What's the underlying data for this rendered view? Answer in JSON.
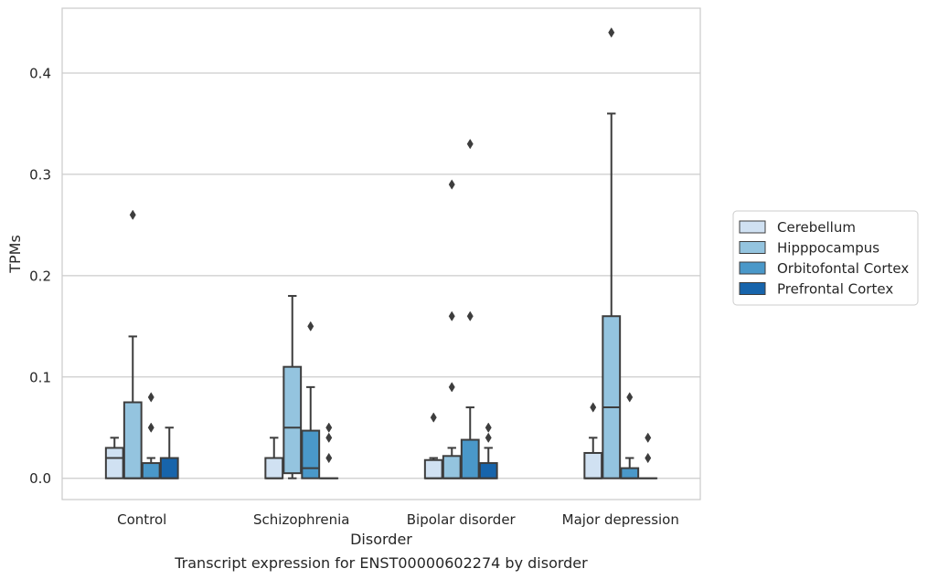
{
  "chart_data": {
    "type": "box",
    "xlabel": "Disorder",
    "ylabel": "TPMs",
    "caption": "Transcript expression for ENST00000602274 by disorder",
    "ylim": [
      -0.021,
      0.464
    ],
    "yticks": [
      "0.0",
      "0.1",
      "0.2",
      "0.3",
      "0.4"
    ],
    "ytick_values": [
      0.0,
      0.1,
      0.2,
      0.3,
      0.4
    ],
    "grid": "horizontal",
    "legend_position": "right",
    "categories": [
      "Control",
      "Schizophrenia",
      "Bipolar disorder",
      "Major depression"
    ],
    "series": [
      {
        "name": "Cerebellum",
        "color": "#d0e1f2",
        "boxes": [
          {
            "q1": 0.0,
            "median": 0.02,
            "q3": 0.03,
            "whisker_low": 0.0,
            "whisker_high": 0.04,
            "outliers": []
          },
          {
            "q1": 0.0,
            "median": 0.0,
            "q3": 0.02,
            "whisker_low": 0.0,
            "whisker_high": 0.04,
            "outliers": []
          },
          {
            "q1": 0.0,
            "median": 0.0,
            "q3": 0.018,
            "whisker_low": 0.0,
            "whisker_high": 0.02,
            "outliers": [
              0.06
            ]
          },
          {
            "q1": 0.0,
            "median": 0.0,
            "q3": 0.025,
            "whisker_low": 0.0,
            "whisker_high": 0.04,
            "outliers": [
              0.07
            ]
          }
        ]
      },
      {
        "name": "Hipppocampus",
        "color": "#94c4df",
        "boxes": [
          {
            "q1": 0.0,
            "median": 0.0,
            "q3": 0.075,
            "whisker_low": 0.0,
            "whisker_high": 0.14,
            "outliers": [
              0.26
            ]
          },
          {
            "q1": 0.005,
            "median": 0.05,
            "q3": 0.11,
            "whisker_low": 0.0,
            "whisker_high": 0.18,
            "outliers": []
          },
          {
            "q1": 0.0,
            "median": 0.0,
            "q3": 0.022,
            "whisker_low": 0.0,
            "whisker_high": 0.03,
            "outliers": [
              0.09,
              0.16,
              0.29
            ]
          },
          {
            "q1": 0.0,
            "median": 0.07,
            "q3": 0.16,
            "whisker_low": 0.0,
            "whisker_high": 0.36,
            "outliers": [
              0.44
            ]
          }
        ]
      },
      {
        "name": "Orbitofontal Cortex",
        "color": "#4a98c9",
        "boxes": [
          {
            "q1": 0.0,
            "median": 0.0,
            "q3": 0.015,
            "whisker_low": 0.0,
            "whisker_high": 0.02,
            "outliers": [
              0.05,
              0.08
            ]
          },
          {
            "q1": 0.0,
            "median": 0.01,
            "q3": 0.047,
            "whisker_low": 0.0,
            "whisker_high": 0.09,
            "outliers": [
              0.15
            ]
          },
          {
            "q1": 0.0,
            "median": 0.0,
            "q3": 0.038,
            "whisker_low": 0.0,
            "whisker_high": 0.07,
            "outliers": [
              0.16,
              0.33
            ]
          },
          {
            "q1": 0.0,
            "median": 0.0,
            "q3": 0.01,
            "whisker_low": 0.0,
            "whisker_high": 0.02,
            "outliers": [
              0.08
            ]
          }
        ]
      },
      {
        "name": "Prefrontal Cortex",
        "color": "#1764ab",
        "boxes": [
          {
            "q1": 0.0,
            "median": 0.0,
            "q3": 0.02,
            "whisker_low": 0.0,
            "whisker_high": 0.05,
            "outliers": []
          },
          {
            "q1": 0.0,
            "median": 0.0,
            "q3": 0.0,
            "whisker_low": 0.0,
            "whisker_high": 0.0,
            "outliers": [
              0.02,
              0.04,
              0.05
            ]
          },
          {
            "q1": 0.0,
            "median": 0.0,
            "q3": 0.015,
            "whisker_low": 0.0,
            "whisker_high": 0.03,
            "outliers": [
              0.04,
              0.05
            ]
          },
          {
            "q1": 0.0,
            "median": 0.0,
            "q3": 0.0,
            "whisker_low": 0.0,
            "whisker_high": 0.0,
            "outliers": [
              0.02,
              0.04
            ]
          }
        ]
      }
    ]
  }
}
